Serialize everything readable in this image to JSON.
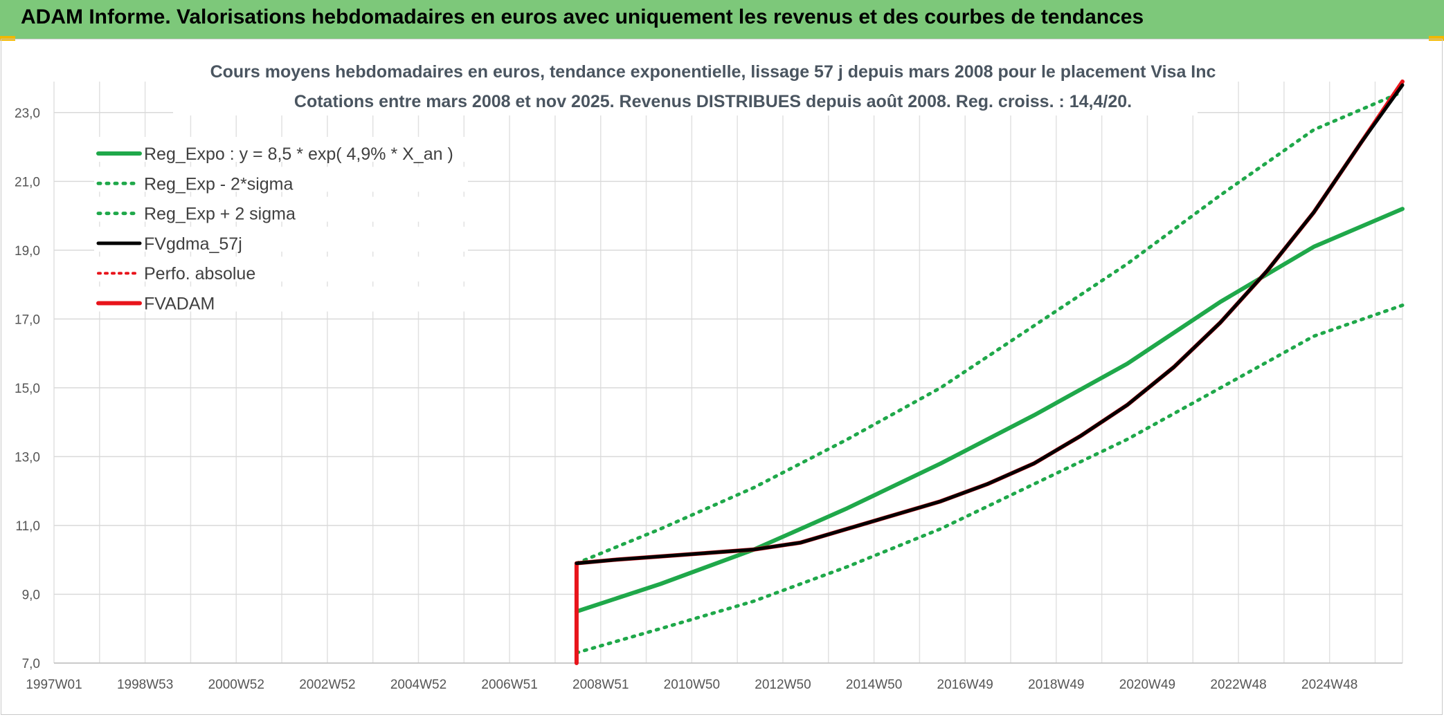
{
  "header": {
    "title": "ADAM Informe. Valorisations hebdomadaires en euros avec uniquement les revenus et des courbes de tendances"
  },
  "colors": {
    "banner": "#7dc87a",
    "green": "#1fa84a",
    "red": "#e8141b",
    "black": "#000000",
    "accent": "#f2b800"
  },
  "chart_data": {
    "type": "line",
    "title": "Cours moyens hebdomadaires en euros, tendance exponentielle, lissage 57 j depuis mars 2008 pour le placement Visa Inc",
    "subtitle": "Cotations entre mars 2008 et nov 2025. Revenus DISTRIBUES depuis août 2008. Reg. croiss. : 14,4/20.",
    "xlabel": "",
    "ylabel": "",
    "x_ticks": [
      "1997W01",
      "1998W53",
      "2000W52",
      "2002W52",
      "2004W52",
      "2006W51",
      "2008W51",
      "2010W50",
      "2012W50",
      "2014W50",
      "2016W49",
      "2018W49",
      "2020W49",
      "2022W48",
      "2024W48"
    ],
    "y_ticks": [
      "7,0",
      "9,0",
      "11,0",
      "13,0",
      "15,0",
      "17,0",
      "19,0",
      "21,0",
      "23,0"
    ],
    "xlim": [
      1997.0,
      2025.9
    ],
    "ylim": [
      7.0,
      23.9
    ],
    "grid": true,
    "legend_position": "top-left",
    "series": [
      {
        "name": "Reg_Expo : y = 8,5 * exp( 4,9% *  X_an )",
        "style": "solid-green",
        "x": [
          2008.2,
          2010,
          2012,
          2014,
          2016,
          2018,
          2020,
          2022,
          2024,
          2025.9
        ],
        "y": [
          8.5,
          9.3,
          10.3,
          11.5,
          12.8,
          14.2,
          15.7,
          17.5,
          19.1,
          20.2
        ]
      },
      {
        "name": "Reg_Exp - 2*sigma",
        "style": "dotted-green",
        "x": [
          2008.2,
          2010,
          2012,
          2014,
          2016,
          2018,
          2020,
          2022,
          2024,
          2025.9
        ],
        "y": [
          7.3,
          8.0,
          8.8,
          9.8,
          10.9,
          12.2,
          13.5,
          15.0,
          16.5,
          17.4
        ]
      },
      {
        "name": "Reg_Exp + 2 sigma",
        "style": "dotted-green",
        "x": [
          2008.2,
          2010,
          2012,
          2014,
          2016,
          2018,
          2020,
          2022,
          2024,
          2025.9
        ],
        "y": [
          9.9,
          10.9,
          12.1,
          13.5,
          15.0,
          16.8,
          18.6,
          20.6,
          22.5,
          23.6
        ]
      },
      {
        "name": "FVgdma_57j",
        "style": "solid-black",
        "x": [
          2008.2,
          2009,
          2010,
          2011,
          2012,
          2013,
          2014,
          2015,
          2016,
          2017,
          2018,
          2019,
          2020,
          2021,
          2022,
          2023,
          2024,
          2025,
          2025.9
        ],
        "y": [
          9.9,
          10.0,
          10.1,
          10.2,
          10.3,
          10.5,
          10.9,
          11.3,
          11.7,
          12.2,
          12.8,
          13.6,
          14.5,
          15.6,
          16.9,
          18.4,
          20.1,
          22.1,
          23.8
        ]
      },
      {
        "name": "Perfo. absolue",
        "style": "dotted-red",
        "x": [],
        "y": []
      },
      {
        "name": "FVADAM",
        "style": "solid-red",
        "x": [
          2008.2,
          2008.2,
          2009,
          2010,
          2011,
          2012,
          2013,
          2014,
          2015,
          2016,
          2017,
          2018,
          2019,
          2020,
          2021,
          2022,
          2023,
          2024,
          2025,
          2025.9
        ],
        "y": [
          7.0,
          9.9,
          10.0,
          10.1,
          10.2,
          10.3,
          10.5,
          10.9,
          11.3,
          11.7,
          12.2,
          12.8,
          13.6,
          14.5,
          15.6,
          16.9,
          18.4,
          20.1,
          22.1,
          23.9
        ]
      }
    ]
  }
}
